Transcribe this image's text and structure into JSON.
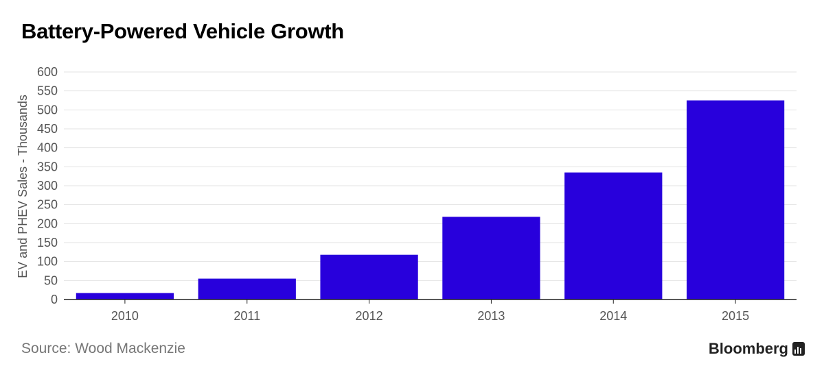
{
  "header": {
    "title": "Battery-Powered Vehicle Growth"
  },
  "footer": {
    "source": "Source: Wood Mackenzie",
    "brand": "Bloomberg",
    "brand_icon": "bloomberg-terminal-icon"
  },
  "colors": {
    "bar": "#2800DC",
    "grid": "#e3e3e3",
    "axis": "#222222",
    "text_muted": "#555555"
  },
  "chart_data": {
    "type": "bar",
    "title": "Battery-Powered Vehicle Growth",
    "xlabel": "",
    "ylabel": "EV and PHEV Sales - Thousands",
    "categories": [
      "2010",
      "2011",
      "2012",
      "2013",
      "2014",
      "2015"
    ],
    "series": [
      {
        "values": [
          17,
          55,
          118,
          218,
          335,
          525
        ]
      }
    ],
    "ylim": [
      0,
      600
    ],
    "yticks": [
      0,
      50,
      100,
      150,
      200,
      250,
      300,
      350,
      400,
      450,
      500,
      550,
      600
    ],
    "grid": true,
    "legend": "none"
  }
}
